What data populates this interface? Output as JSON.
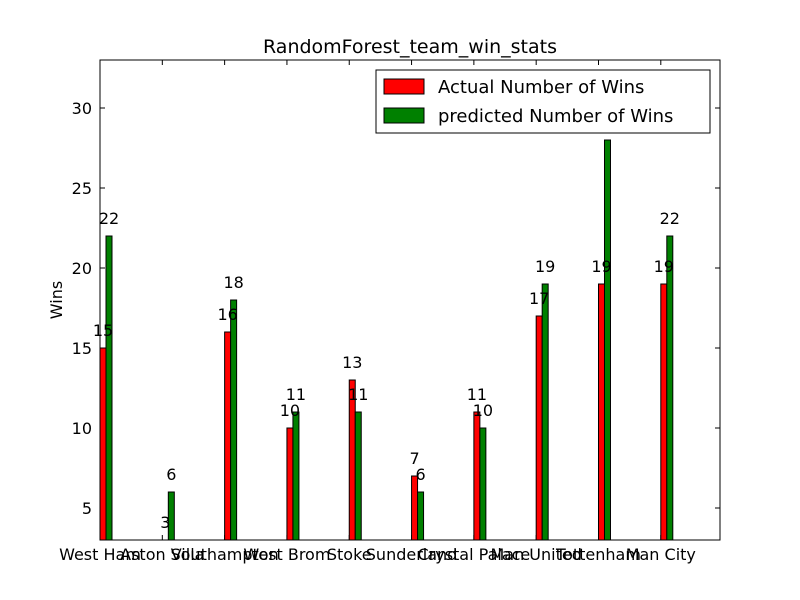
{
  "chart_data": {
    "type": "bar",
    "title": "RandomForest_team_win_stats",
    "xlabel": "",
    "ylabel": "Wins",
    "ylim": [
      3,
      33
    ],
    "yticks": [
      5,
      10,
      15,
      20,
      25,
      30
    ],
    "categories": [
      "West Ham",
      "Aston Villa",
      "Southampton",
      "West Brom",
      "Stoke",
      "Sunderland",
      "Crystal Palace",
      "Man United",
      "Tottenham",
      "Man City"
    ],
    "series": [
      {
        "name": "Actual Number of Wins",
        "color": "#ff0000",
        "values": [
          15,
          3,
          16,
          10,
          13,
          7,
          11,
          17,
          19,
          19
        ]
      },
      {
        "name": "predicted Number of Wins",
        "color": "#008000",
        "values": [
          22,
          6,
          18,
          11,
          11,
          6,
          10,
          19,
          28,
          22
        ]
      }
    ],
    "data_labels": {
      "Actual Number of Wins": [
        "15",
        "3",
        "16",
        "10",
        "13",
        "7",
        "11",
        "17",
        "19",
        "19"
      ],
      "predicted Number of Wins": [
        "22",
        "6",
        "18",
        "11",
        "11",
        "6",
        "10",
        "19",
        "",
        "22"
      ]
    },
    "legend_position": "top-right",
    "grid": false
  }
}
